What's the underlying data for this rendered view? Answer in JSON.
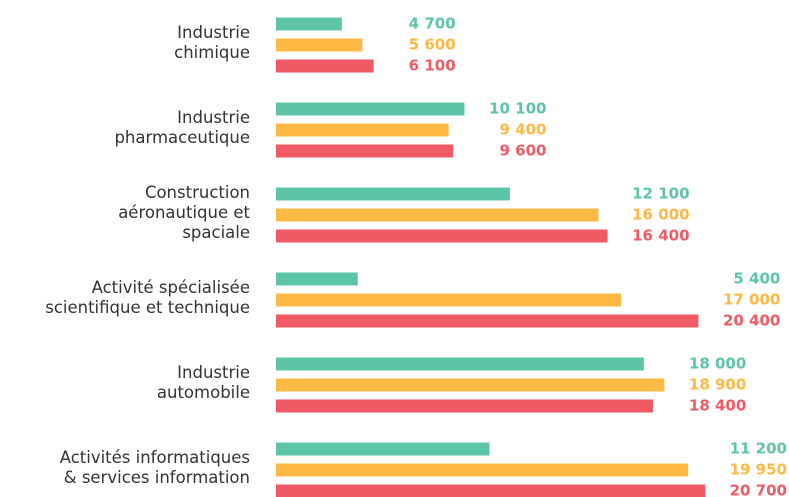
{
  "chart_data": {
    "type": "bar",
    "orientation": "horizontal",
    "categories": [
      "Industrie\nchimique",
      "Industrie\npharmaceutique",
      "Construction\naéronautique et\nspaciale",
      "Activité spécialisée\nscientifique et technique",
      "Industrie\nautomobile",
      "Activités informatiques\n& services information"
    ],
    "xlim": [
      1800,
      21000
    ],
    "series": [
      {
        "color": "#5ec4a8",
        "values": [
          4700,
          10100,
          12100,
          5400,
          18000,
          11200
        ],
        "value_labels": [
          "4 700",
          "10 100",
          "12 100",
          "5 400",
          "18 000",
          "11 200"
        ]
      },
      {
        "color": "#fdb944",
        "values": [
          5600,
          9400,
          16000,
          17000,
          18900,
          19950
        ],
        "value_labels": [
          "5 600",
          "9 400",
          "16 000",
          "17 000",
          "18 900",
          "19 950"
        ]
      },
      {
        "color": "#f05a64",
        "values": [
          6100,
          9600,
          16400,
          20400,
          18400,
          20700
        ],
        "value_labels": [
          "6 100",
          "9 600",
          "16 400",
          "20 400",
          "18 400",
          "20 700"
        ]
      }
    ]
  }
}
